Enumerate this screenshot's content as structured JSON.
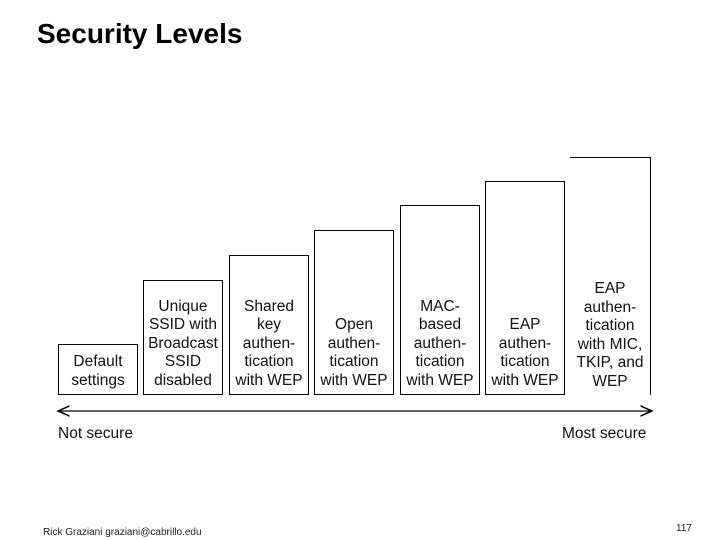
{
  "title": "Security Levels",
  "levels": [
    {
      "lines": [
        "Default",
        "settings"
      ]
    },
    {
      "lines": [
        "Unique",
        "SSID with",
        "Broadcast",
        "SSID",
        "disabled"
      ]
    },
    {
      "lines": [
        "Shared",
        "key",
        "authen-",
        "tication",
        "with WEP"
      ]
    },
    {
      "lines": [
        "Open",
        "authen-",
        "tication",
        "with WEP"
      ]
    },
    {
      "lines": [
        "MAC-",
        "based",
        "authen-",
        "tication",
        "with WEP"
      ]
    },
    {
      "lines": [
        "EAP",
        "authen-",
        "tication",
        "with WEP"
      ]
    },
    {
      "lines": [
        "EAP",
        "authen-",
        "tication",
        "with MIC,",
        "TKIP, and",
        "WEP"
      ]
    }
  ],
  "axis": {
    "left_label": "Not secure",
    "right_label": "Most secure"
  },
  "footer": {
    "author": "Rick Graziani  graziani@cabrillo.edu",
    "page_number": "117"
  }
}
